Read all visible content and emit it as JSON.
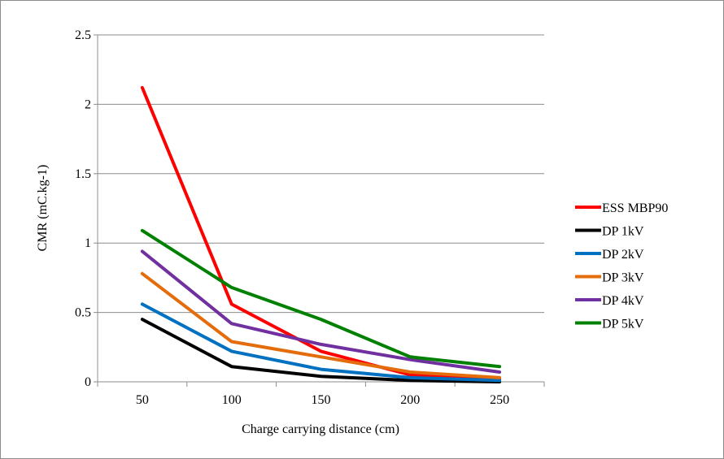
{
  "chart_data": {
    "type": "line",
    "title": "",
    "xlabel": "Charge carrying distance (cm)",
    "ylabel": "CMR (mC.kg-1)",
    "categories": [
      "50",
      "100",
      "150",
      "200",
      "250"
    ],
    "ylim": [
      0,
      2.5
    ],
    "yticks": [
      "0",
      "0.5",
      "1",
      "1.5",
      "2",
      "2.5"
    ],
    "grid": "horizontal",
    "legend_position": "right",
    "series": [
      {
        "name": "ESS MBP90",
        "color": "#ff0000",
        "values": [
          2.12,
          0.56,
          0.22,
          0.05,
          0.02
        ]
      },
      {
        "name": "DP 1kV",
        "color": "#000000",
        "values": [
          0.45,
          0.11,
          0.04,
          0.01,
          0.0
        ]
      },
      {
        "name": "DP 2kV",
        "color": "#0070c0",
        "values": [
          0.56,
          0.22,
          0.09,
          0.03,
          0.01
        ]
      },
      {
        "name": "DP 3kV",
        "color": "#e46c0a",
        "values": [
          0.78,
          0.29,
          0.18,
          0.07,
          0.03
        ]
      },
      {
        "name": "DP 4kV",
        "color": "#7030a0",
        "values": [
          0.94,
          0.42,
          0.27,
          0.16,
          0.07
        ]
      },
      {
        "name": "DP 5kV",
        "color": "#008000",
        "values": [
          1.09,
          0.68,
          0.45,
          0.18,
          0.11
        ]
      }
    ]
  }
}
